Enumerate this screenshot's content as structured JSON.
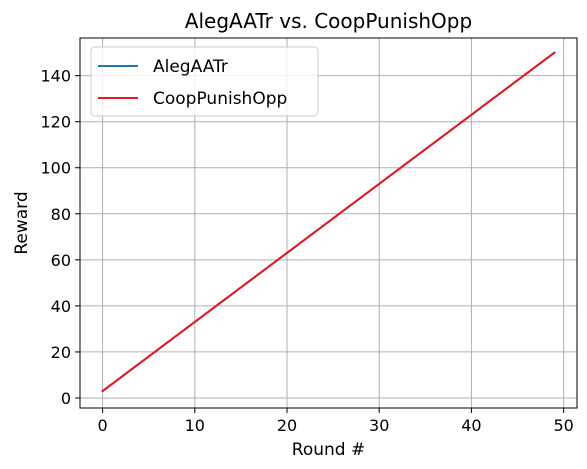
{
  "chart_data": {
    "type": "line",
    "title": "AlegAATr vs. CoopPunishOpp",
    "xlabel": "Round #",
    "ylabel": "Reward",
    "xlim": [
      -2.45,
      51.45
    ],
    "ylim": [
      -4.35,
      156.35
    ],
    "xticks": [
      0,
      10,
      20,
      30,
      40,
      50
    ],
    "yticks": [
      0,
      20,
      40,
      60,
      80,
      100,
      120,
      140
    ],
    "grid": true,
    "legend_position": "top-left",
    "series": [
      {
        "name": "AlegAATr",
        "color": "#1f77b4",
        "x_start": 0,
        "x_end": 49,
        "y_start": 3,
        "y_end": 150
      },
      {
        "name": "CoopPunishOpp",
        "color": "#e41a1c",
        "x_start": 0,
        "x_end": 49,
        "y_start": 3,
        "y_end": 150
      }
    ]
  }
}
